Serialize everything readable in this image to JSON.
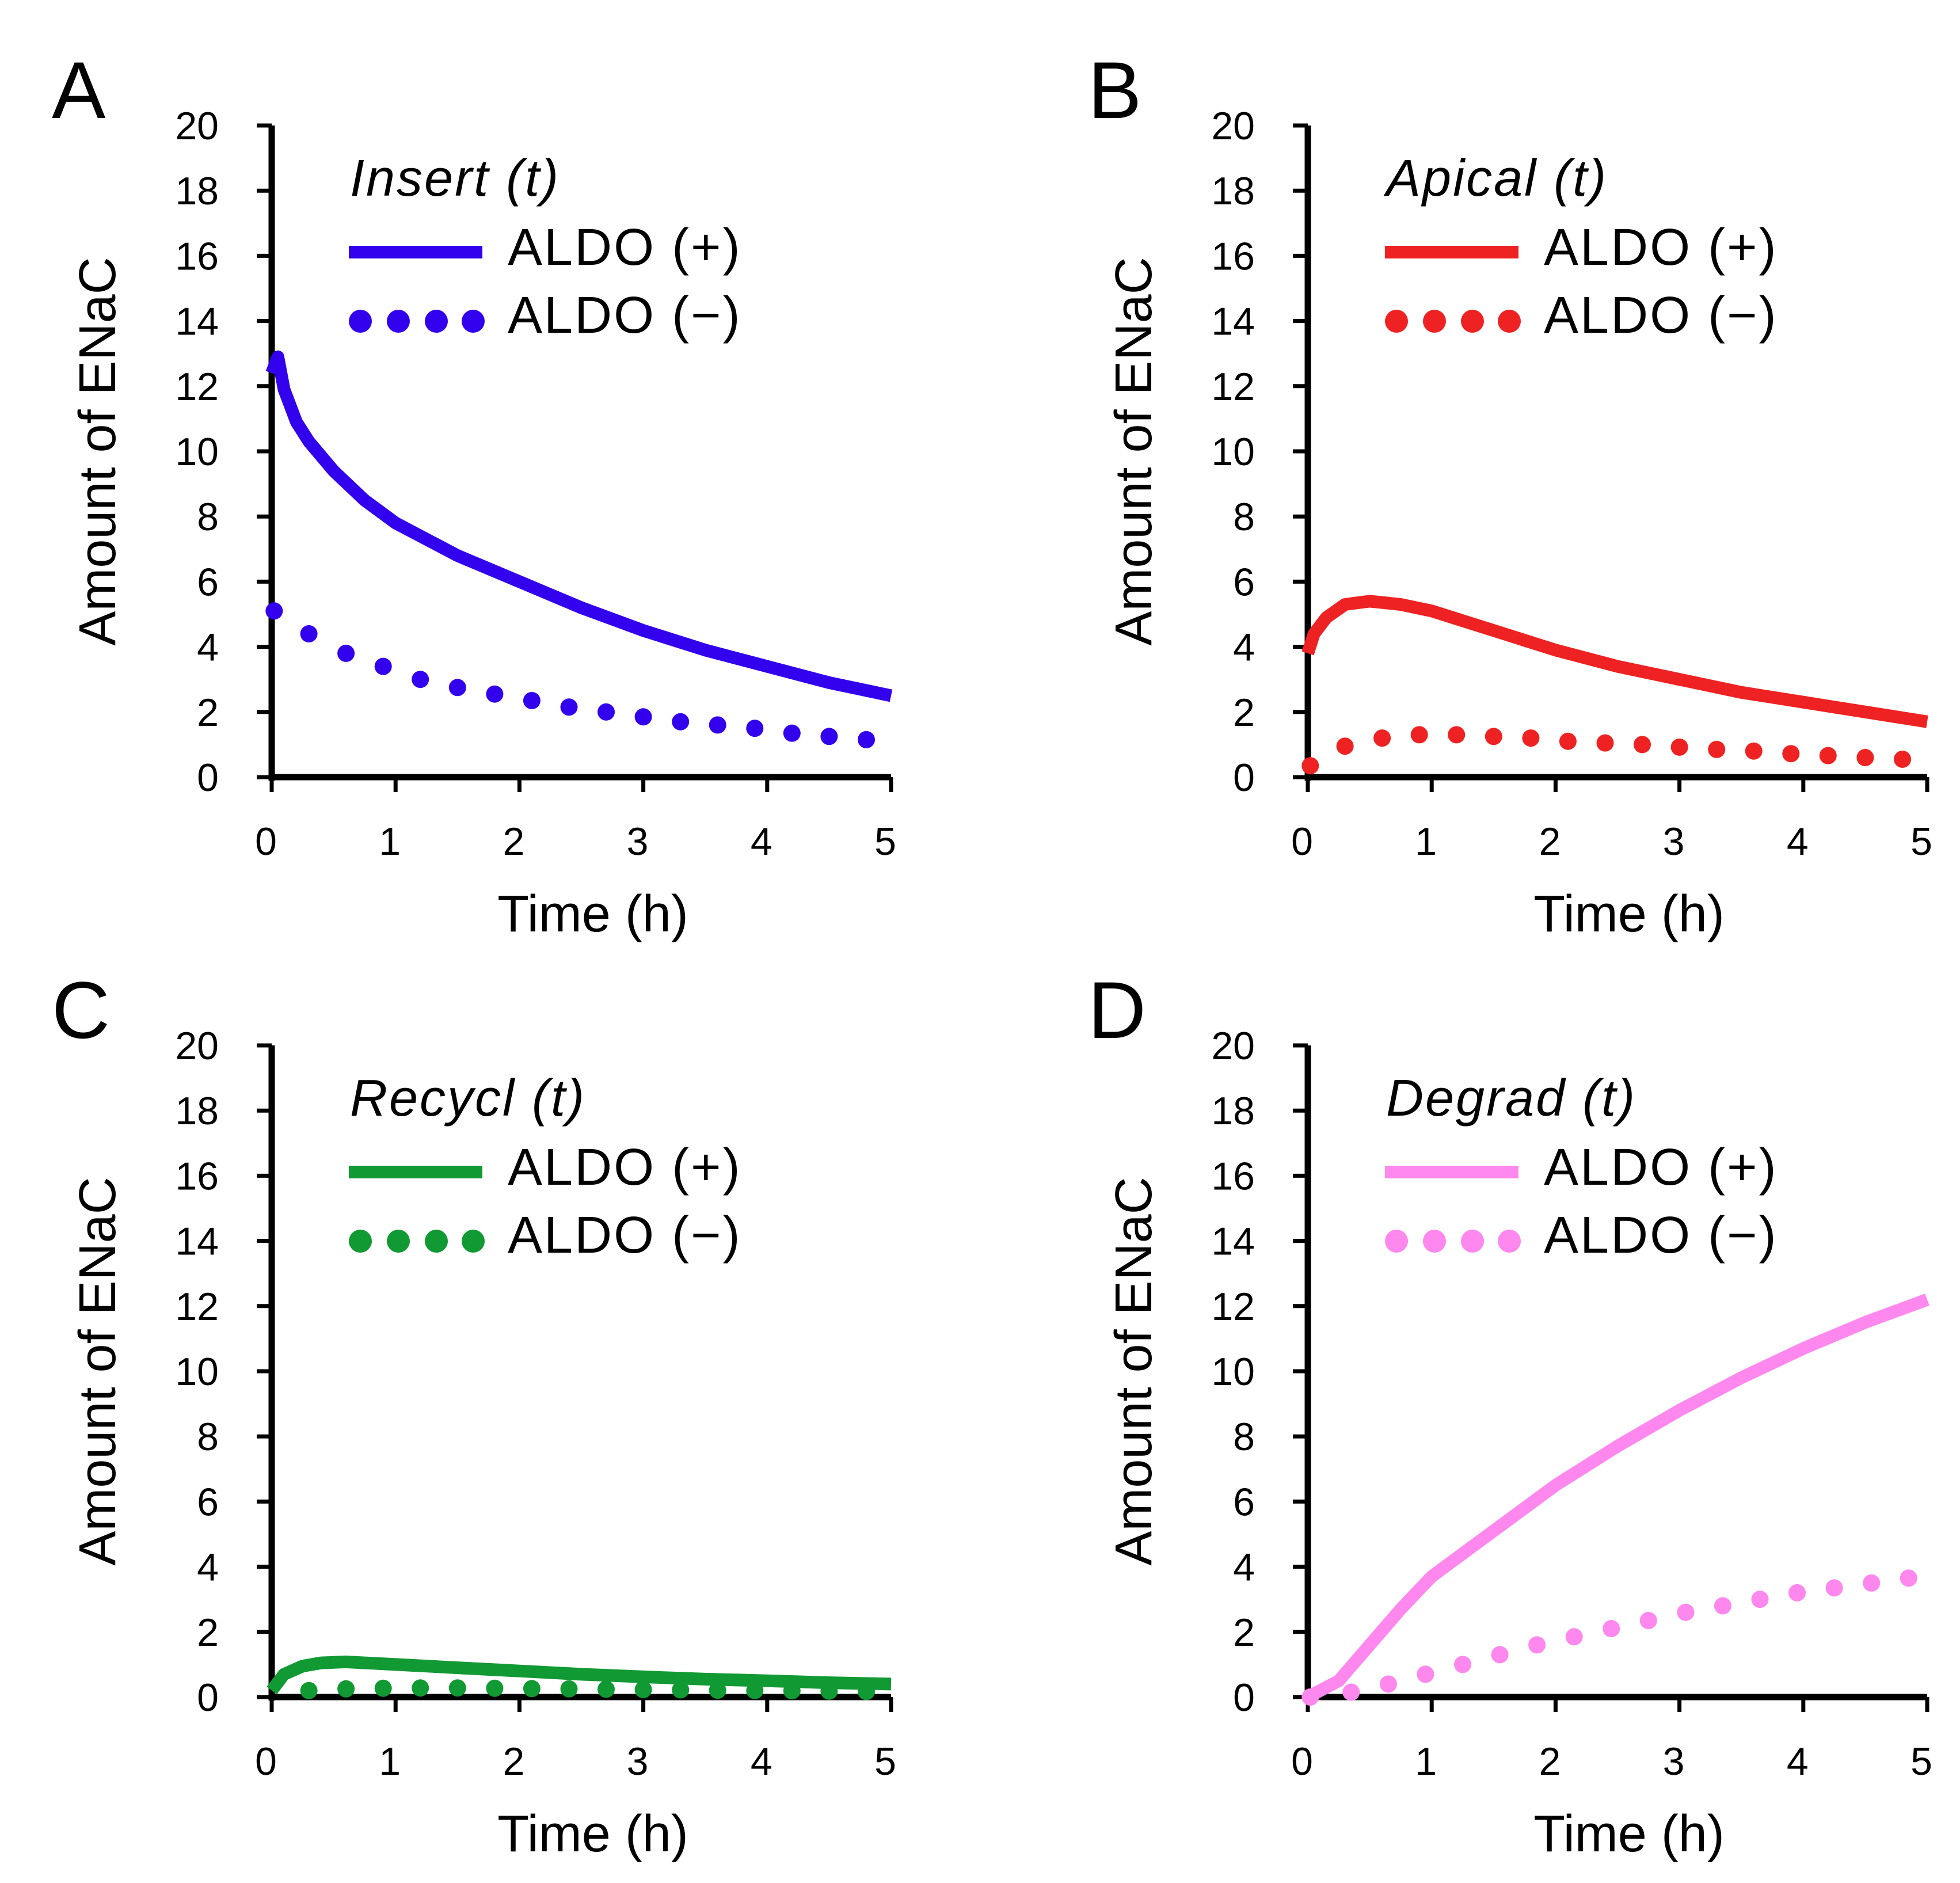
{
  "chart_data": [
    {
      "panel_label": "A",
      "type": "line",
      "title": "Insert (t)",
      "xlabel": "Time (h)",
      "ylabel": "Amount of ENaC",
      "xlim": [
        0,
        5
      ],
      "ylim": [
        0,
        20
      ],
      "xticks": [
        "0",
        "1",
        "2",
        "3",
        "4",
        "5"
      ],
      "yticks": [
        "0",
        "2",
        "4",
        "6",
        "8",
        "10",
        "12",
        "14",
        "16",
        "18",
        "20"
      ],
      "color": "#3300ee",
      "legend_location": "top-left",
      "series": [
        {
          "name": "ALDO (+)",
          "style": "solid",
          "x": [
            0,
            0.05,
            0.1,
            0.2,
            0.3,
            0.5,
            0.75,
            1,
            1.5,
            2,
            2.5,
            3,
            3.5,
            4,
            4.5,
            5
          ],
          "y": [
            12.4,
            12.9,
            11.9,
            10.9,
            10.3,
            9.4,
            8.5,
            7.8,
            6.8,
            6.0,
            5.2,
            4.5,
            3.9,
            3.4,
            2.9,
            2.5
          ]
        },
        {
          "name": "ALDO (−)",
          "style": "dotted",
          "x": [
            0.02,
            0.3,
            0.6,
            0.9,
            1.2,
            1.5,
            1.8,
            2.1,
            2.4,
            2.7,
            3.0,
            3.3,
            3.6,
            3.9,
            4.2,
            4.5,
            4.8
          ],
          "y": [
            5.1,
            4.4,
            3.8,
            3.4,
            3.0,
            2.75,
            2.55,
            2.35,
            2.15,
            2.0,
            1.85,
            1.7,
            1.6,
            1.5,
            1.35,
            1.25,
            1.15
          ]
        }
      ]
    },
    {
      "panel_label": "B",
      "type": "line",
      "title": "Apical (t)",
      "xlabel": "Time (h)",
      "ylabel": "Amount of ENaC",
      "xlim": [
        0,
        5
      ],
      "ylim": [
        0,
        20
      ],
      "xticks": [
        "0",
        "1",
        "2",
        "3",
        "4",
        "5"
      ],
      "yticks": [
        "0",
        "2",
        "4",
        "6",
        "8",
        "10",
        "12",
        "14",
        "16",
        "18",
        "20"
      ],
      "color": "#ee2222",
      "legend_location": "top-left",
      "series": [
        {
          "name": "ALDO (+)",
          "style": "solid",
          "x": [
            0,
            0.05,
            0.15,
            0.3,
            0.5,
            0.75,
            1,
            1.5,
            2,
            2.5,
            3,
            3.5,
            4,
            4.5,
            5
          ],
          "y": [
            3.8,
            4.4,
            4.9,
            5.3,
            5.4,
            5.3,
            5.1,
            4.5,
            3.9,
            3.4,
            3.0,
            2.6,
            2.3,
            2.0,
            1.7
          ]
        },
        {
          "name": "ALDO (−)",
          "style": "dotted",
          "x": [
            0.02,
            0.3,
            0.6,
            0.9,
            1.2,
            1.5,
            1.8,
            2.1,
            2.4,
            2.7,
            3.0,
            3.3,
            3.6,
            3.9,
            4.2,
            4.5,
            4.8
          ],
          "y": [
            0.35,
            0.95,
            1.2,
            1.3,
            1.3,
            1.25,
            1.2,
            1.1,
            1.05,
            1.0,
            0.92,
            0.85,
            0.8,
            0.72,
            0.66,
            0.6,
            0.55
          ]
        }
      ]
    },
    {
      "panel_label": "C",
      "type": "line",
      "title": "Recycl (t)",
      "xlabel": "Time (h)",
      "ylabel": "Amount of ENaC",
      "xlim": [
        0,
        5
      ],
      "ylim": [
        0,
        20
      ],
      "xticks": [
        "0",
        "1",
        "2",
        "3",
        "4",
        "5"
      ],
      "yticks": [
        "0",
        "2",
        "4",
        "6",
        "8",
        "10",
        "12",
        "14",
        "16",
        "18",
        "20"
      ],
      "color": "#119933",
      "legend_location": "top-left",
      "series": [
        {
          "name": "ALDO (+)",
          "style": "solid",
          "x": [
            0,
            0.1,
            0.25,
            0.4,
            0.6,
            1,
            1.5,
            2,
            2.5,
            3,
            3.5,
            4,
            4.5,
            5
          ],
          "y": [
            0.2,
            0.7,
            0.95,
            1.05,
            1.08,
            1.0,
            0.9,
            0.8,
            0.7,
            0.62,
            0.55,
            0.5,
            0.44,
            0.4
          ]
        },
        {
          "name": "ALDO (−)",
          "style": "dotted",
          "x": [
            0.3,
            0.6,
            0.9,
            1.2,
            1.5,
            1.8,
            2.1,
            2.4,
            2.7,
            3.0,
            3.3,
            3.6,
            3.9,
            4.2,
            4.5,
            4.8
          ],
          "y": [
            0.2,
            0.25,
            0.27,
            0.28,
            0.28,
            0.27,
            0.26,
            0.25,
            0.24,
            0.23,
            0.22,
            0.21,
            0.2,
            0.19,
            0.18,
            0.17
          ]
        }
      ]
    },
    {
      "panel_label": "D",
      "type": "line",
      "title": "Degrad (t)",
      "xlabel": "Time (h)",
      "ylabel": "Amount of ENaC",
      "xlim": [
        0,
        5
      ],
      "ylim": [
        0,
        20
      ],
      "xticks": [
        "0",
        "1",
        "2",
        "3",
        "4",
        "5"
      ],
      "yticks": [
        "0",
        "2",
        "4",
        "6",
        "8",
        "10",
        "12",
        "14",
        "16",
        "18",
        "20"
      ],
      "color": "#ff88ee",
      "legend_location": "top-left",
      "series": [
        {
          "name": "ALDO (+)",
          "style": "solid",
          "x": [
            0,
            0.25,
            0.5,
            0.75,
            1,
            1.5,
            2,
            2.5,
            3,
            3.5,
            4,
            4.5,
            5
          ],
          "y": [
            0,
            0.5,
            1.6,
            2.7,
            3.7,
            5.1,
            6.5,
            7.7,
            8.8,
            9.8,
            10.7,
            11.5,
            12.2
          ]
        },
        {
          "name": "ALDO (−)",
          "style": "dotted",
          "x": [
            0.02,
            0.35,
            0.65,
            0.95,
            1.25,
            1.55,
            1.85,
            2.15,
            2.45,
            2.75,
            3.05,
            3.35,
            3.65,
            3.95,
            4.25,
            4.55,
            4.85
          ],
          "y": [
            0.0,
            0.15,
            0.4,
            0.7,
            1.0,
            1.3,
            1.6,
            1.85,
            2.1,
            2.35,
            2.6,
            2.8,
            3.0,
            3.2,
            3.35,
            3.5,
            3.65
          ]
        }
      ]
    }
  ]
}
